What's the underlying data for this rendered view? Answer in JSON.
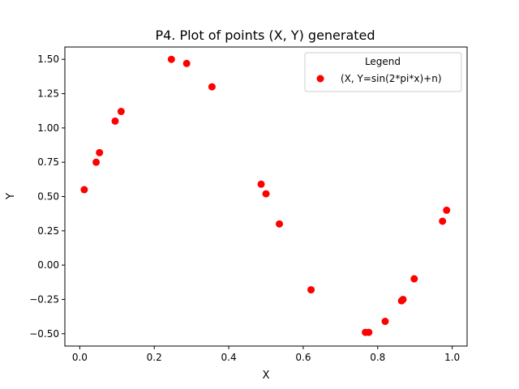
{
  "chart_data": {
    "type": "scatter",
    "title": "P4. Plot of points (X, Y) generated",
    "xlabel": "X",
    "ylabel": "Y",
    "xlim": [
      -0.04,
      1.04
    ],
    "ylim": [
      -0.59,
      1.59
    ],
    "xticks": [
      0.0,
      0.2,
      0.4,
      0.6,
      0.8,
      1.0
    ],
    "xtick_labels": [
      "0.0",
      "0.2",
      "0.4",
      "0.6",
      "0.8",
      "1.0"
    ],
    "yticks": [
      -0.5,
      -0.25,
      0.0,
      0.25,
      0.5,
      0.75,
      1.0,
      1.25,
      1.5
    ],
    "ytick_labels": [
      "−0.50",
      "−0.25",
      "0.00",
      "0.25",
      "0.50",
      "0.75",
      "1.00",
      "1.25",
      "1.50"
    ],
    "grid": false,
    "legend": {
      "title": "Legend",
      "placement": "top-right"
    },
    "series": [
      {
        "name": "(X, Y=sin(2*pi*x)+n)",
        "color": "#ff0000",
        "marker": "circle",
        "x": [
          0.012,
          0.044,
          0.053,
          0.095,
          0.111,
          0.246,
          0.287,
          0.355,
          0.487,
          0.5,
          0.536,
          0.621,
          0.767,
          0.776,
          0.82,
          0.864,
          0.868,
          0.898,
          0.974,
          0.985
        ],
        "y": [
          0.55,
          0.75,
          0.82,
          1.05,
          1.12,
          1.5,
          1.47,
          1.3,
          0.59,
          0.52,
          0.3,
          -0.18,
          -0.49,
          -0.49,
          -0.41,
          -0.26,
          -0.25,
          -0.1,
          0.32,
          0.4
        ]
      }
    ]
  }
}
